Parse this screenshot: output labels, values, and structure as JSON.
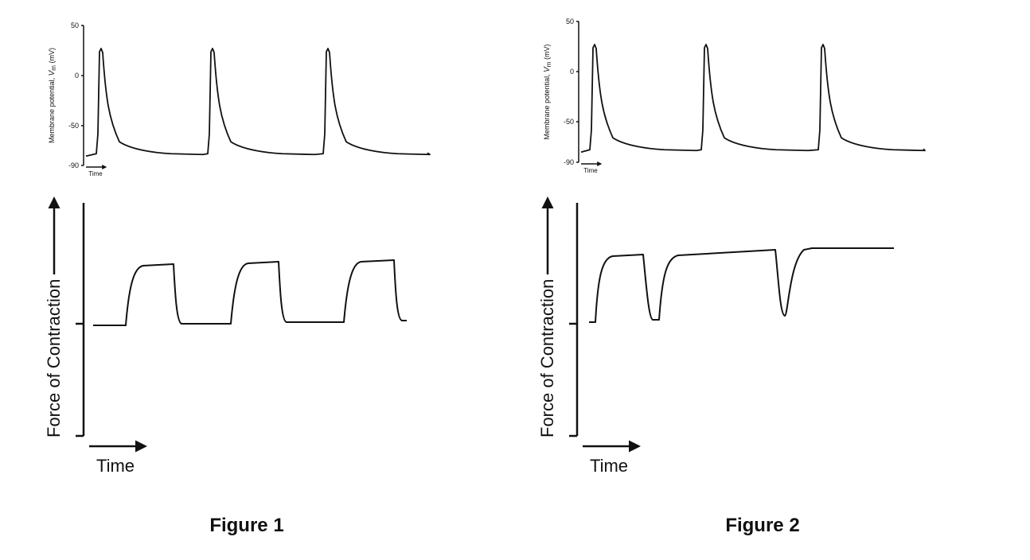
{
  "figures": [
    {
      "membrane": {
        "y_label": "Membrane potential,",
        "y_label_var": "V",
        "y_label_sub": "m",
        "y_label_unit": "(mV)",
        "ticks": [
          "50",
          "0",
          "-50",
          "-90"
        ],
        "x_label": "Time"
      },
      "force": {
        "y_label": "Force of Contraction",
        "x_label": "Time"
      },
      "caption": "Figure 1"
    },
    {
      "membrane": {
        "y_label": "Membrane potential,",
        "y_label_var": "V",
        "y_label_sub": "m",
        "y_label_unit": "(mV)",
        "ticks": [
          "50",
          "0",
          "-50",
          "-90"
        ],
        "x_label": "Time"
      },
      "force": {
        "y_label": "Force of Contraction",
        "x_label": "Time"
      },
      "caption": "Figure 2"
    }
  ]
}
